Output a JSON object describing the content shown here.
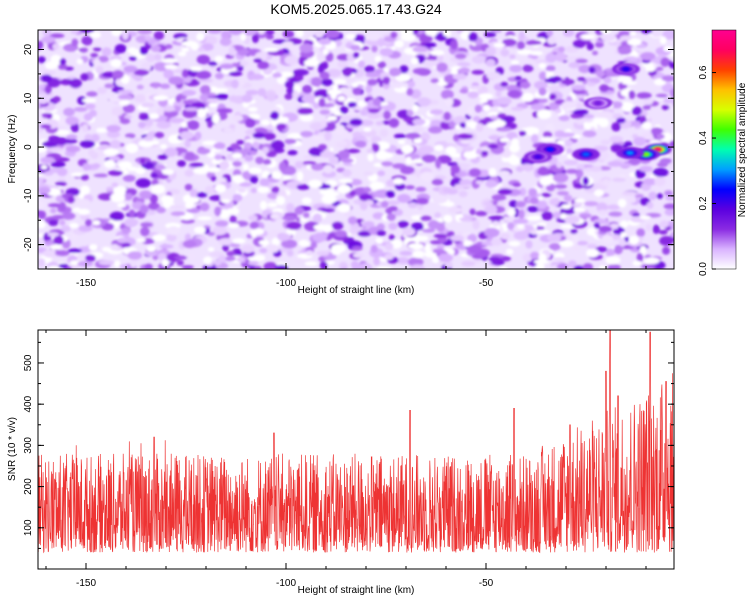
{
  "title": "KOM5.2025.065.17.43.G24",
  "chart_data": [
    {
      "type": "heatmap",
      "xlabel": "Height of straight line (km)",
      "ylabel": "Frequency (Hz)",
      "xlim": [
        -162,
        -3
      ],
      "ylim": [
        -25,
        24
      ],
      "xticks": [
        -150,
        -100,
        -50
      ],
      "yticks": [
        -20,
        -10,
        0,
        10,
        20
      ],
      "grid": false,
      "colorbar": {
        "label": "Normalized spectral amplitude",
        "range": [
          0,
          0.73
        ],
        "ticks": [
          0.0,
          0.2,
          0.4,
          0.6
        ],
        "colors": [
          "#ffffff",
          "#d9b3ff",
          "#8a2be2",
          "#5a00e0",
          "#0000ff",
          "#00a0ff",
          "#00ffb0",
          "#40ff00",
          "#d8ff00",
          "#ffc000",
          "#ff4000",
          "#ff0060",
          "#ff0090"
        ]
      },
      "peaks": [
        {
          "x": -7,
          "y": -0.5,
          "value": 0.7
        },
        {
          "x": -10,
          "y": -1.5,
          "value": 0.45
        },
        {
          "x": -14,
          "y": -1.2,
          "value": 0.3
        },
        {
          "x": -25,
          "y": -1.5,
          "value": 0.28
        },
        {
          "x": -34,
          "y": -0.5,
          "value": 0.25
        },
        {
          "x": -37,
          "y": -2.0,
          "value": 0.2
        },
        {
          "x": -15,
          "y": 16,
          "value": 0.22
        },
        {
          "x": -22,
          "y": 9,
          "value": 0.15
        }
      ]
    },
    {
      "type": "line",
      "xlabel": "Height of straight line (km)",
      "ylabel": "SNR (10 * v/v)",
      "xlim": [
        -162,
        -3
      ],
      "ylim": [
        0,
        580
      ],
      "xticks": [
        -150,
        -100,
        -50
      ],
      "yticks": [
        100,
        200,
        300,
        400,
        500
      ],
      "grid": false,
      "series": [
        {
          "color": "#ee3333",
          "typical_range": [
            40,
            280
          ],
          "peaks": [
            {
              "x": -19,
              "y": 578
            },
            {
              "x": -9,
              "y": 575
            },
            {
              "x": -20,
              "y": 480
            },
            {
              "x": -5,
              "y": 455
            },
            {
              "x": -17,
              "y": 420
            },
            {
              "x": -43,
              "y": 390
            },
            {
              "x": -69,
              "y": 385
            },
            {
              "x": -29,
              "y": 350
            },
            {
              "x": -133,
              "y": 320
            },
            {
              "x": -103,
              "y": 330
            }
          ]
        }
      ]
    }
  ]
}
